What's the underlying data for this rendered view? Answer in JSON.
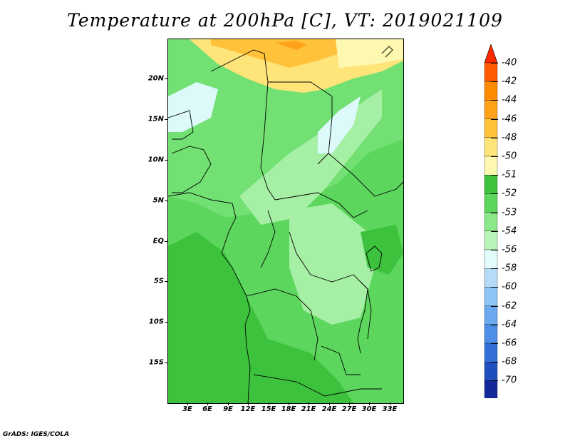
{
  "title": "Temperature at 200hPa [C], VT: 2019021109",
  "footer": "GrADS: IGES/COLA",
  "map": {
    "lat_labels": [
      "20N",
      "15N",
      "10N",
      "5N",
      "EQ",
      "5S",
      "10S",
      "15S"
    ],
    "lon_labels": [
      "3E",
      "6E",
      "9E",
      "12E",
      "15E",
      "18E",
      "21E",
      "24E",
      "27E",
      "30E",
      "33E"
    ]
  },
  "colorbar": {
    "labels": [
      "-40",
      "-42",
      "-44",
      "-46",
      "-48",
      "-50",
      "-51",
      "-52",
      "-53",
      "-54",
      "-56",
      "-58",
      "-60",
      "-62",
      "-64",
      "-66",
      "-68",
      "-70"
    ],
    "colors": [
      "#ff2a00",
      "#ff5a00",
      "#ff8c00",
      "#ffa21a",
      "#ffc23a",
      "#ffe47a",
      "#fdf8b0",
      "#3cc23c",
      "#5cd65c",
      "#8ae88a",
      "#b9f4b9",
      "#e2fbfb",
      "#b4dcfa",
      "#8ec5f5",
      "#6aa9f0",
      "#4d8ee6",
      "#3270d8",
      "#1f4fbe",
      "#14289a",
      "#0a0a6e",
      "#d8d8f8"
    ]
  }
}
